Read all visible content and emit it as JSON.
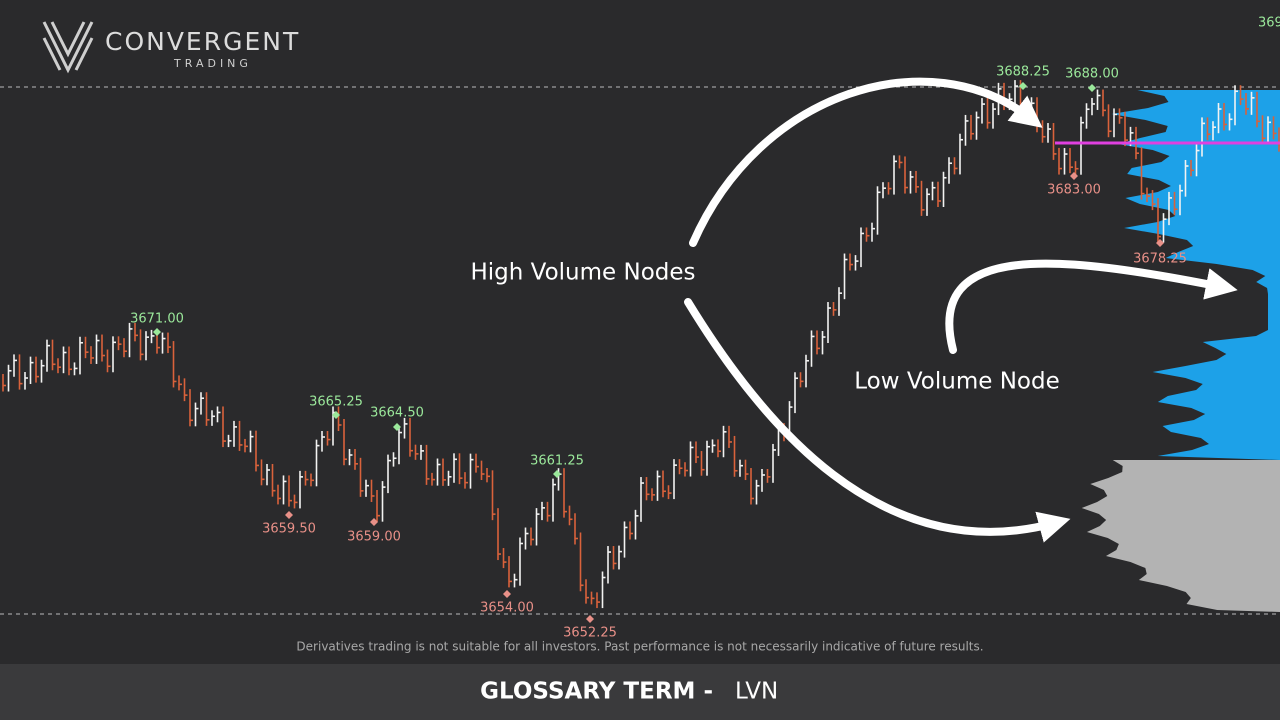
{
  "logo": {
    "name": "CONVERGENT",
    "tagline": "TRADING"
  },
  "price_labels": {
    "highs": [
      "3671.00",
      "3665.25",
      "3664.50",
      "3661.25",
      "3688.25",
      "3688.00"
    ],
    "lows": [
      "3659.50",
      "3659.00",
      "3654.00",
      "3652.25",
      "3683.00",
      "3678.25"
    ],
    "edge": "369"
  },
  "annotations": [
    "High Volume Nodes",
    "Low Volume Node"
  ],
  "disclaimer": "Derivatives trading is not suitable for all investors. Past performance is not necessarily indicative of future results.",
  "footer": {
    "term_label": "GLOSSARY TERM -",
    "term": "LVN"
  }
}
